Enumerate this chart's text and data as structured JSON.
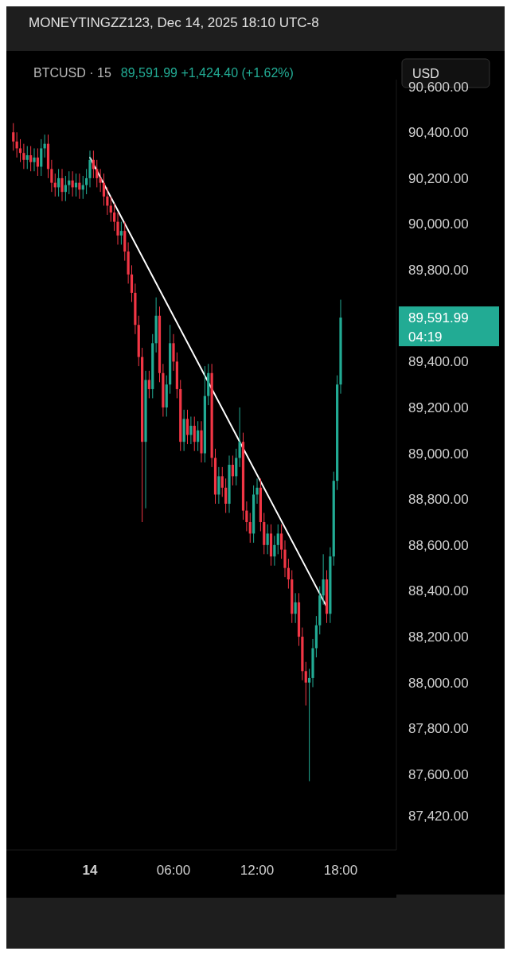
{
  "chart_data": {
    "type": "candlestick",
    "title": "MONEYTINGZZ123, Dec 14, 2025 18:10 UTC-8",
    "subtitle": "BTCUSD · 15",
    "x": [
      "2025-12-13T18:30",
      "2025-12-13T18:45",
      "2025-12-13T19:00",
      "2025-12-13T19:15",
      "2025-12-13T19:30",
      "2025-12-13T19:45",
      "2025-12-13T20:00",
      "2025-12-13T20:15",
      "2025-12-13T20:30",
      "2025-12-13T20:45",
      "2025-12-13T21:00",
      "2025-12-13T21:15",
      "2025-12-13T21:30",
      "2025-12-13T21:45",
      "2025-12-13T22:00",
      "2025-12-13T22:15",
      "2025-12-13T22:30",
      "2025-12-13T22:45",
      "2025-12-13T23:00",
      "2025-12-13T23:15",
      "2025-12-13T23:30",
      "2025-12-13T23:45",
      "2025-12-14T00:00",
      "2025-12-14T00:15",
      "2025-12-14T00:30",
      "2025-12-14T00:45",
      "2025-12-14T01:00",
      "2025-12-14T01:15",
      "2025-12-14T01:30",
      "2025-12-14T01:45",
      "2025-12-14T02:00",
      "2025-12-14T02:15",
      "2025-12-14T02:30",
      "2025-12-14T02:45",
      "2025-12-14T03:00",
      "2025-12-14T03:15",
      "2025-12-14T03:30",
      "2025-12-14T03:45",
      "2025-12-14T04:00",
      "2025-12-14T04:15",
      "2025-12-14T04:30",
      "2025-12-14T04:45",
      "2025-12-14T05:00",
      "2025-12-14T05:15",
      "2025-12-14T05:30",
      "2025-12-14T05:45",
      "2025-12-14T06:00",
      "2025-12-14T06:15",
      "2025-12-14T06:30",
      "2025-12-14T06:45",
      "2025-12-14T07:00",
      "2025-12-14T07:15",
      "2025-12-14T07:30",
      "2025-12-14T07:45",
      "2025-12-14T08:00",
      "2025-12-14T08:15",
      "2025-12-14T08:30",
      "2025-12-14T08:45",
      "2025-12-14T09:00",
      "2025-12-14T09:15",
      "2025-12-14T09:30",
      "2025-12-14T09:45",
      "2025-12-14T10:00",
      "2025-12-14T10:15",
      "2025-12-14T10:30",
      "2025-12-14T10:45",
      "2025-12-14T11:00",
      "2025-12-14T11:15",
      "2025-12-14T11:30",
      "2025-12-14T11:45",
      "2025-12-14T12:00",
      "2025-12-14T12:15",
      "2025-12-14T12:30",
      "2025-12-14T12:45",
      "2025-12-14T13:00",
      "2025-12-14T13:15",
      "2025-12-14T13:30",
      "2025-12-14T13:45",
      "2025-12-14T14:00",
      "2025-12-14T14:15",
      "2025-12-14T14:30",
      "2025-12-14T14:45",
      "2025-12-14T15:00",
      "2025-12-14T15:15",
      "2025-12-14T15:30",
      "2025-12-14T15:45",
      "2025-12-14T16:00",
      "2025-12-14T16:15",
      "2025-12-14T16:30",
      "2025-12-14T16:45",
      "2025-12-14T17:00",
      "2025-12-14T17:15",
      "2025-12-14T17:30",
      "2025-12-14T17:45",
      "2025-12-14T18:00"
    ],
    "ohlc": [
      [
        90400,
        90440,
        90320,
        90360
      ],
      [
        90360,
        90400,
        90290,
        90330
      ],
      [
        90330,
        90370,
        90270,
        90310
      ],
      [
        90310,
        90350,
        90240,
        90280
      ],
      [
        90280,
        90340,
        90240,
        90300
      ],
      [
        90300,
        90340,
        90230,
        90270
      ],
      [
        90270,
        90330,
        90230,
        90290
      ],
      [
        90290,
        90330,
        90210,
        90250
      ],
      [
        90250,
        90370,
        90210,
        90330
      ],
      [
        90330,
        90390,
        90290,
        90350
      ],
      [
        90350,
        90390,
        90200,
        90240
      ],
      [
        90240,
        90280,
        90140,
        90180
      ],
      [
        90180,
        90220,
        90120,
        90160
      ],
      [
        90160,
        90240,
        90120,
        90200
      ],
      [
        90200,
        90240,
        90100,
        90140
      ],
      [
        90140,
        90210,
        90100,
        90170
      ],
      [
        90170,
        90230,
        90130,
        90190
      ],
      [
        90190,
        90230,
        90120,
        90160
      ],
      [
        90160,
        90220,
        90120,
        90180
      ],
      [
        90180,
        90220,
        90110,
        90150
      ],
      [
        90150,
        90210,
        90110,
        90170
      ],
      [
        90170,
        90240,
        90130,
        90200
      ],
      [
        90200,
        90320,
        90160,
        90280
      ],
      [
        90280,
        90320,
        90200,
        90240
      ],
      [
        90240,
        90280,
        90160,
        90200
      ],
      [
        90200,
        90240,
        90140,
        90180
      ],
      [
        90180,
        90220,
        90080,
        90120
      ],
      [
        90120,
        90160,
        90040,
        90080
      ],
      [
        90080,
        90120,
        90010,
        90050
      ],
      [
        90050,
        90090,
        89970,
        90010
      ],
      [
        90010,
        90050,
        89910,
        89950
      ],
      [
        89950,
        90010,
        89910,
        89970
      ],
      [
        89970,
        90010,
        89840,
        89880
      ],
      [
        89880,
        89920,
        89740,
        89780
      ],
      [
        89780,
        89820,
        89660,
        89700
      ],
      [
        89700,
        89740,
        89520,
        89560
      ],
      [
        89560,
        89600,
        89380,
        89420
      ],
      [
        89420,
        89460,
        88700,
        89050
      ],
      [
        89050,
        89360,
        88760,
        89320
      ],
      [
        89320,
        89360,
        89240,
        89280
      ],
      [
        89280,
        89520,
        89240,
        89480
      ],
      [
        89480,
        89680,
        89440,
        89600
      ],
      [
        89600,
        89640,
        89310,
        89350
      ],
      [
        89350,
        89390,
        89160,
        89200
      ],
      [
        89200,
        89340,
        89160,
        89300
      ],
      [
        89300,
        89560,
        89260,
        89480
      ],
      [
        89480,
        89520,
        89360,
        89400
      ],
      [
        89400,
        89440,
        89240,
        89280
      ],
      [
        89280,
        89320,
        89010,
        89050
      ],
      [
        89050,
        89190,
        89010,
        89150
      ],
      [
        89150,
        89190,
        89040,
        89080
      ],
      [
        89080,
        89160,
        89040,
        89120
      ],
      [
        89120,
        89160,
        89010,
        89050
      ],
      [
        89050,
        89140,
        89010,
        89100
      ],
      [
        89100,
        89140,
        88960,
        89000
      ],
      [
        89000,
        89380,
        88960,
        89250
      ],
      [
        89250,
        89390,
        89210,
        89350
      ],
      [
        89350,
        89390,
        88940,
        88980
      ],
      [
        88980,
        89020,
        88780,
        88820
      ],
      [
        88820,
        88940,
        88780,
        88900
      ],
      [
        88900,
        88940,
        88810,
        88850
      ],
      [
        88850,
        88890,
        88740,
        88780
      ],
      [
        88780,
        88990,
        88740,
        88950
      ],
      [
        88950,
        88990,
        88860,
        88900
      ],
      [
        88900,
        89020,
        88860,
        88980
      ],
      [
        88980,
        89200,
        88940,
        89050
      ],
      [
        89050,
        89090,
        88710,
        88750
      ],
      [
        88750,
        88790,
        88660,
        88700
      ],
      [
        88700,
        88740,
        88610,
        88650
      ],
      [
        88650,
        88860,
        88610,
        88820
      ],
      [
        88820,
        88890,
        88780,
        88850
      ],
      [
        88850,
        88890,
        88660,
        88700
      ],
      [
        88700,
        88740,
        88560,
        88600
      ],
      [
        88600,
        88690,
        88560,
        88650
      ],
      [
        88650,
        88690,
        88510,
        88550
      ],
      [
        88550,
        88640,
        88510,
        88600
      ],
      [
        88600,
        88690,
        88560,
        88650
      ],
      [
        88650,
        88690,
        88540,
        88580
      ],
      [
        88580,
        88620,
        88460,
        88500
      ],
      [
        88500,
        88540,
        88410,
        88450
      ],
      [
        88450,
        88490,
        88260,
        88300
      ],
      [
        88300,
        88390,
        88260,
        88350
      ],
      [
        88350,
        88390,
        88160,
        88200
      ],
      [
        88200,
        88240,
        88010,
        88050
      ],
      [
        88050,
        88090,
        87900,
        88000
      ],
      [
        88000,
        88060,
        87570,
        88020
      ],
      [
        88020,
        88190,
        87980,
        88150
      ],
      [
        88150,
        88290,
        88110,
        88250
      ],
      [
        88250,
        88420,
        88210,
        88380
      ],
      [
        88380,
        88560,
        88340,
        88450
      ],
      [
        88450,
        88490,
        88260,
        88300
      ],
      [
        88300,
        88590,
        88260,
        88550
      ],
      [
        88550,
        88920,
        88510,
        88880
      ],
      [
        88880,
        89340,
        88840,
        89300
      ],
      [
        89300,
        89670,
        89260,
        89591.99
      ]
    ],
    "series": [
      {
        "type": "line",
        "x": [
          "2025-12-14T00:00",
          "2025-12-14T17:00"
        ],
        "values": [
          90290,
          88330
        ],
        "color": "#ffffff"
      }
    ],
    "xlim": [
      "2025-12-13T18:00",
      "2025-12-14T22:00"
    ],
    "xticks": [
      {
        "value": "2025-12-14T00:00",
        "label": "14"
      },
      {
        "value": "2025-12-14T06:00",
        "label": "06:00"
      },
      {
        "value": "2025-12-14T12:00",
        "label": "12:00"
      },
      {
        "value": "2025-12-14T18:00",
        "label": "18:00"
      }
    ],
    "ylim": [
      87270,
      90630
    ],
    "yticks": [
      {
        "value": 87420,
        "label": "87,420.00"
      },
      {
        "value": 87600,
        "label": "87,600.00"
      },
      {
        "value": 87800,
        "label": "87,800.00"
      },
      {
        "value": 88000,
        "label": "88,000.00"
      },
      {
        "value": 88200,
        "label": "88,200.00"
      },
      {
        "value": 88400,
        "label": "88,400.00"
      },
      {
        "value": 88600,
        "label": "88,600.00"
      },
      {
        "value": 88800,
        "label": "88,800.00"
      },
      {
        "value": 89000,
        "label": "89,000.00"
      },
      {
        "value": 89200,
        "label": "89,200.00"
      },
      {
        "value": 89400,
        "label": "89,400.00"
      },
      {
        "value": 89800,
        "label": "89,800.00"
      },
      {
        "value": 90000,
        "label": "90,000.00"
      },
      {
        "value": 90200,
        "label": "90,200.00"
      },
      {
        "value": 90400,
        "label": "90,400.00"
      },
      {
        "value": 90600,
        "label": "90,600.00"
      }
    ],
    "annotations": [
      "89,591.99",
      "04:19",
      "89,591.99 +1,424.40 (+1.62%)",
      "USD"
    ],
    "grid": false
  }
}
